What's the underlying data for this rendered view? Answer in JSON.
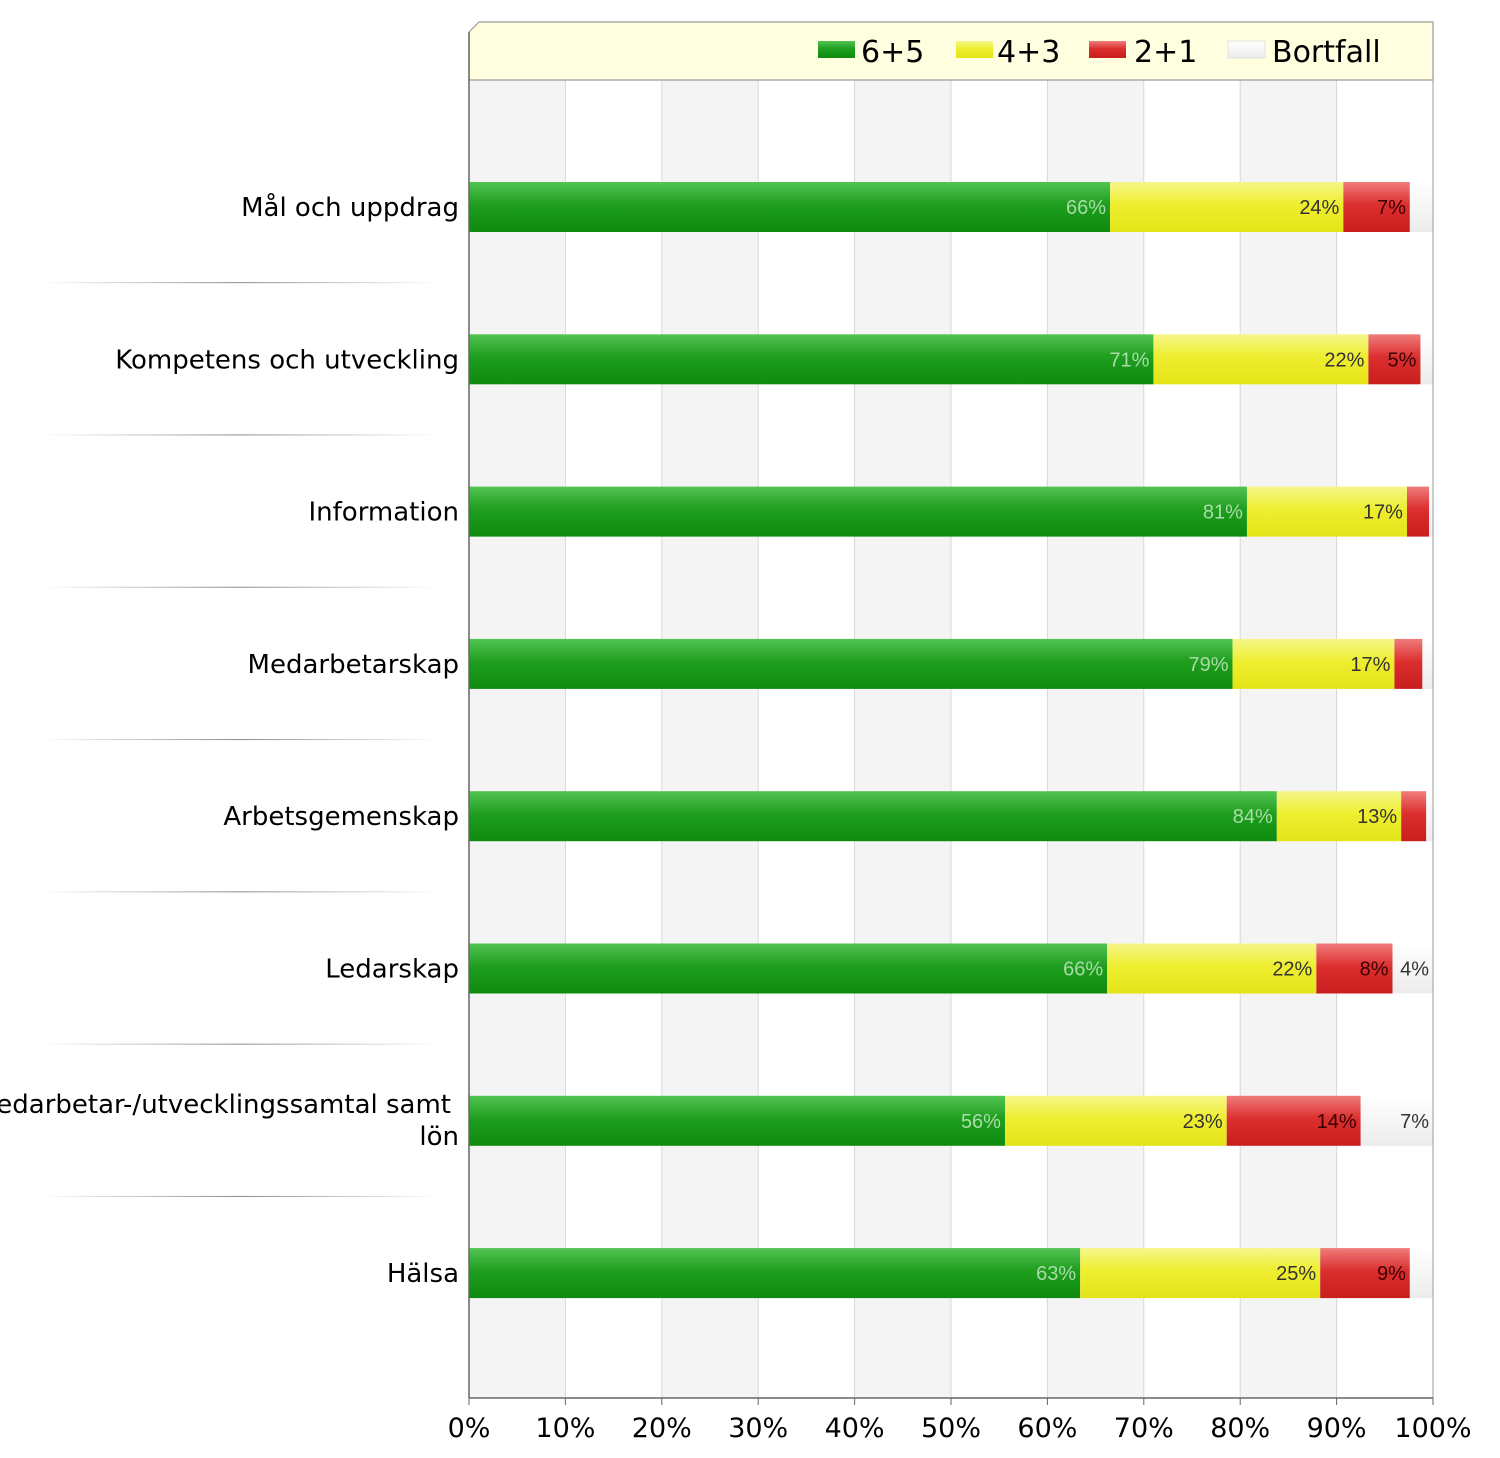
{
  "chart_data": {
    "type": "bar",
    "orientation": "horizontal",
    "stacked": true,
    "categories": [
      "Mål och uppdrag",
      "Kompetens och utveckling",
      "Information",
      "Medarbetarskap",
      "Arbetsgemenskap",
      "Ledarskap",
      "Medarbetar-/utvecklingssamtal samt lön",
      "Hälsa"
    ],
    "series": [
      {
        "name": "6+5",
        "color": "#1a9a1a",
        "values": [
          66.5,
          71,
          80.7,
          79.2,
          83.8,
          66.2,
          55.6,
          63.4
        ]
      },
      {
        "name": "4+3",
        "color": "#f0f030",
        "values": [
          24.2,
          22.3,
          16.6,
          16.8,
          12.9,
          21.7,
          23,
          24.9
        ]
      },
      {
        "name": "2+1",
        "color": "#dd2a2a",
        "values": [
          6.9,
          5.4,
          2.3,
          2.9,
          2.6,
          7.9,
          13.9,
          9.3
        ]
      },
      {
        "name": "Bortfall",
        "color": "#f2f2f2",
        "values": [
          2.4,
          1.3,
          0.4,
          1.1,
          0.7,
          4.2,
          7.5,
          2.4
        ]
      }
    ],
    "labels": [
      [
        "66%",
        "24%",
        "7%",
        ""
      ],
      [
        "71%",
        "22%",
        "5%",
        ""
      ],
      [
        "81%",
        "17%",
        "",
        ""
      ],
      [
        "79%",
        "17%",
        "",
        ""
      ],
      [
        "84%",
        "13%",
        "",
        ""
      ],
      [
        "66%",
        "22%",
        "8%",
        "4%"
      ],
      [
        "56%",
        "23%",
        "14%",
        "7%"
      ],
      [
        "63%",
        "25%",
        "9%",
        ""
      ]
    ],
    "xticks": [
      "0%",
      "10%",
      "20%",
      "30%",
      "40%",
      "50%",
      "60%",
      "70%",
      "80%",
      "90%",
      "100%"
    ],
    "xlim": [
      0,
      100
    ],
    "grid": true,
    "legend_position": "top"
  }
}
